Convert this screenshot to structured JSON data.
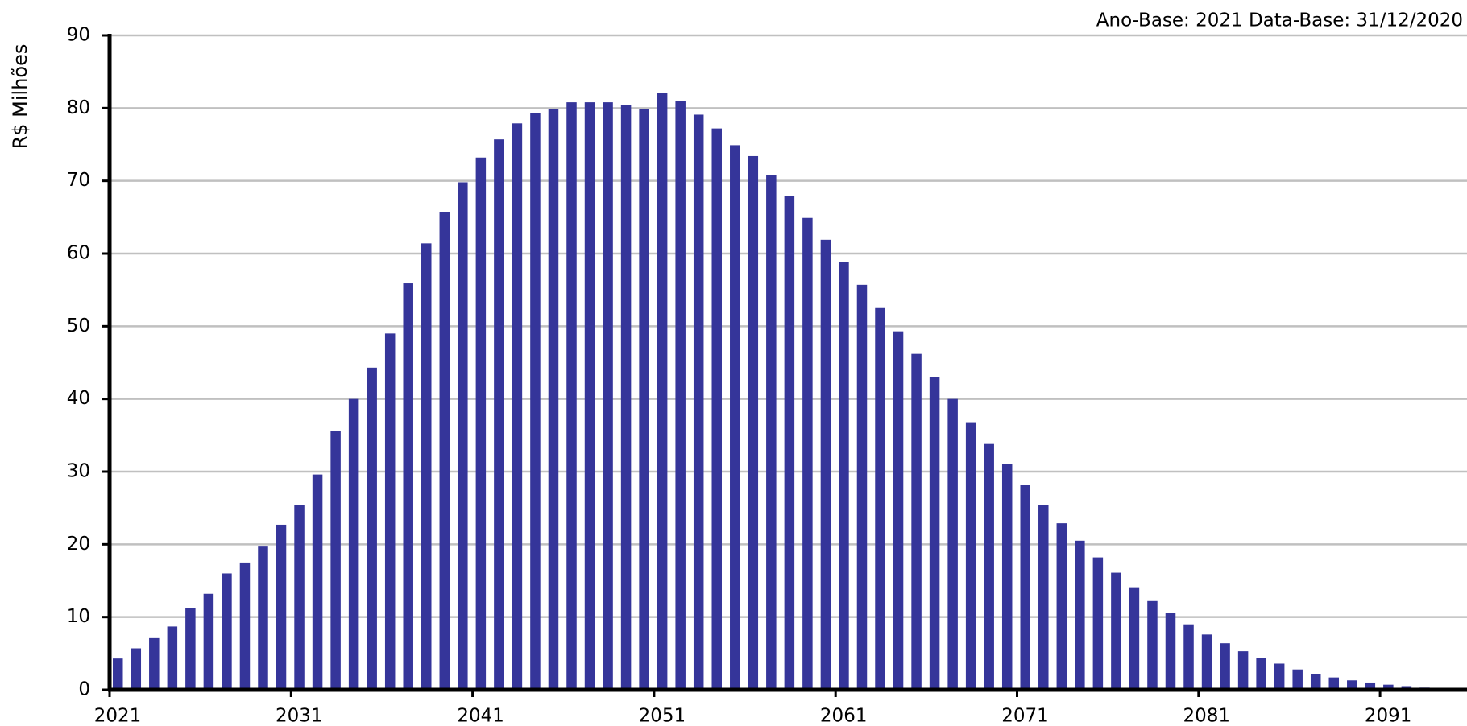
{
  "chart_data": {
    "type": "bar",
    "subtitle": "Ano-Base: 2021 Data-Base: 31/12/2020",
    "y_label": "R$ Milhões",
    "categories": [
      "2021",
      null,
      null,
      null,
      null,
      null,
      null,
      null,
      null,
      null,
      "2031",
      null,
      null,
      null,
      null,
      null,
      null,
      null,
      null,
      null,
      "2041",
      null,
      null,
      null,
      null,
      null,
      null,
      null,
      null,
      null,
      "2051",
      null,
      null,
      null,
      null,
      null,
      null,
      null,
      null,
      null,
      "2061",
      null,
      null,
      null,
      null,
      null,
      null,
      null,
      null,
      null,
      "2071",
      null,
      null,
      null,
      null,
      null,
      null,
      null,
      null,
      null,
      "2081",
      null,
      null,
      null,
      null,
      null,
      null,
      null,
      null,
      null,
      "2091",
      null,
      null,
      null,
      null
    ],
    "values": [
      4.3,
      5.7,
      7.1,
      8.7,
      11.2,
      13.2,
      16.0,
      17.5,
      19.8,
      22.7,
      25.4,
      29.6,
      35.6,
      40.0,
      44.3,
      49.0,
      55.9,
      61.4,
      65.7,
      69.8,
      73.2,
      75.7,
      77.9,
      79.3,
      79.9,
      80.8,
      80.8,
      80.8,
      80.4,
      79.9,
      82.1,
      81.0,
      79.1,
      77.2,
      74.9,
      73.4,
      70.8,
      67.9,
      64.9,
      61.9,
      58.8,
      55.7,
      52.5,
      49.3,
      46.2,
      43.0,
      40.0,
      36.8,
      33.8,
      31.0,
      28.2,
      25.4,
      22.9,
      20.5,
      18.2,
      16.1,
      14.1,
      12.2,
      10.6,
      9.0,
      7.6,
      6.4,
      5.3,
      4.4,
      3.6,
      2.8,
      2.2,
      1.7,
      1.3,
      1.0,
      0.7,
      0.5,
      0.3,
      0.2,
      0.1
    ],
    "color": "#35359a",
    "ylim": [
      0,
      90
    ],
    "yticks": [
      0,
      10,
      20,
      30,
      40,
      50,
      60,
      70,
      80,
      90
    ],
    "grid": true
  }
}
